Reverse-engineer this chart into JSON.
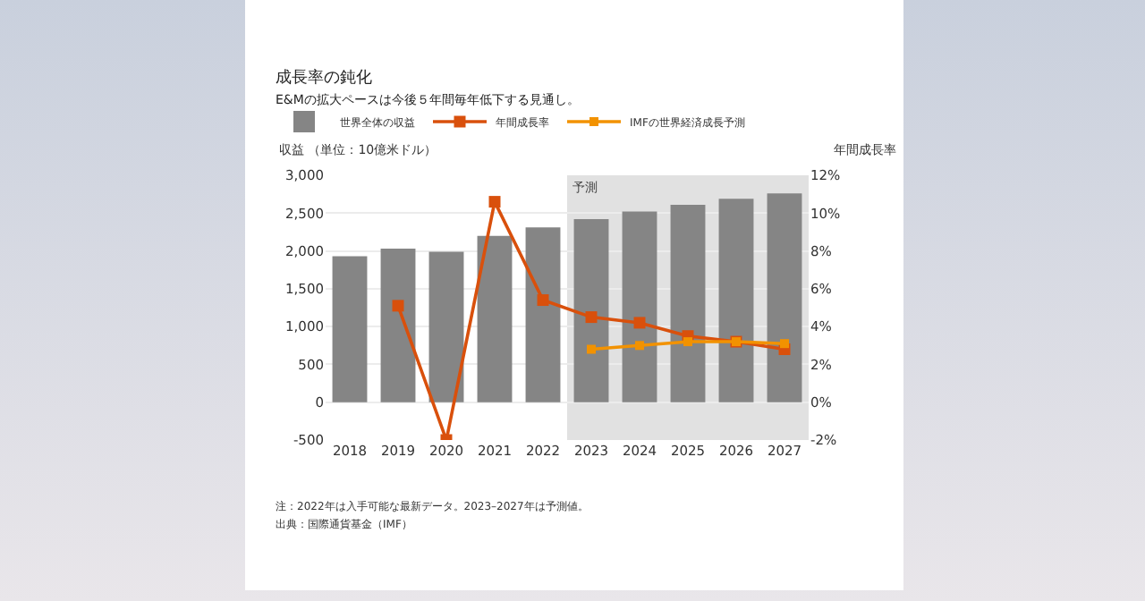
{
  "chart_data": {
    "type": "bar",
    "title": "成長率の鈍化",
    "subtitle": "E&Mの拡大ペースは今後５年間毎年低下する見通し。",
    "categories": [
      "2018",
      "2019",
      "2020",
      "2021",
      "2022",
      "2023",
      "2024",
      "2025",
      "2026",
      "2027"
    ],
    "series": [
      {
        "name": "世界全体の収益",
        "color": "#858585",
        "values": [
          1930,
          2030,
          1990,
          2200,
          2310,
          2420,
          2520,
          2610,
          2690,
          2760
        ]
      },
      {
        "name": "年間成長率",
        "type": "line",
        "axis": "y2",
        "color": "#d9500c",
        "values": [
          null,
          5.1,
          -2.0,
          10.6,
          5.4,
          4.5,
          4.2,
          3.5,
          3.2,
          2.8
        ]
      },
      {
        "name": "IMFの世界経済成長予測",
        "type": "line",
        "axis": "y2",
        "color": "#f29200",
        "values": [
          null,
          null,
          null,
          null,
          null,
          2.8,
          3.0,
          3.2,
          3.2,
          3.1
        ]
      }
    ],
    "ylabel": "収益 （単位：10億米ドル）",
    "y2label": "年間成長率",
    "ylim": [
      -500,
      3000
    ],
    "yticks": [
      -500,
      0,
      500,
      {
        "value": 1000,
        "label": "1,000"
      },
      {
        "value": 1500,
        "label": "1,500"
      },
      {
        "value": 2000,
        "label": "2,000"
      },
      {
        "value": 2500,
        "label": "2,500"
      },
      {
        "value": 3000,
        "label": "3,000"
      }
    ],
    "y2lim": [
      -2,
      12
    ],
    "y2ticks": [
      {
        "value": -2,
        "label": "-2%"
      },
      {
        "value": 0,
        "label": "0%"
      },
      {
        "value": 2,
        "label": "2%"
      },
      {
        "value": 4,
        "label": "4%"
      },
      {
        "value": 6,
        "label": "6%"
      },
      {
        "value": 8,
        "label": "8%"
      },
      {
        "value": 10,
        "label": "10%"
      },
      {
        "value": 12,
        "label": "12%"
      }
    ],
    "bands": [
      {
        "axis": "x",
        "from": "2023",
        "to": "2027",
        "label": "予測",
        "color": "#e1e1e1"
      }
    ],
    "grid": "y",
    "legend": "top left",
    "marker": "square",
    "line_style": "solid",
    "annotations": [
      "注：2022年は入手可能な最新データ。2023–2027年は予測値。",
      "出典：国際通貨基金（IMF）"
    ]
  }
}
